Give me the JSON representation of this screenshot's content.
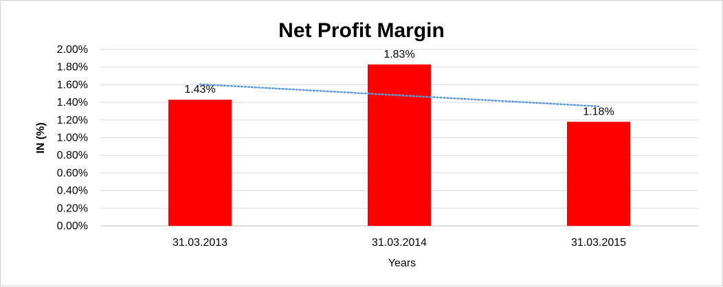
{
  "chart_data": {
    "type": "bar",
    "title": "Net Profit Margin",
    "xlabel": "Years",
    "ylabel": "IN (%)",
    "categories": [
      "31.03.2013",
      "31.03.2014",
      "31.03.2015"
    ],
    "values": [
      1.43,
      1.83,
      1.18
    ],
    "data_labels": [
      "1.43%",
      "1.83%",
      "1.18%"
    ],
    "ylim": [
      0,
      2.0
    ],
    "yticks": [
      "0.00%",
      "0.20%",
      "0.40%",
      "0.60%",
      "0.80%",
      "1.00%",
      "1.20%",
      "1.40%",
      "1.60%",
      "1.80%",
      "2.00%"
    ],
    "grid": true,
    "trendline": "linear",
    "colors": {
      "bar": "#ff0000",
      "trendline": "#5b9bd5",
      "grid": "#d9d9d9"
    }
  }
}
